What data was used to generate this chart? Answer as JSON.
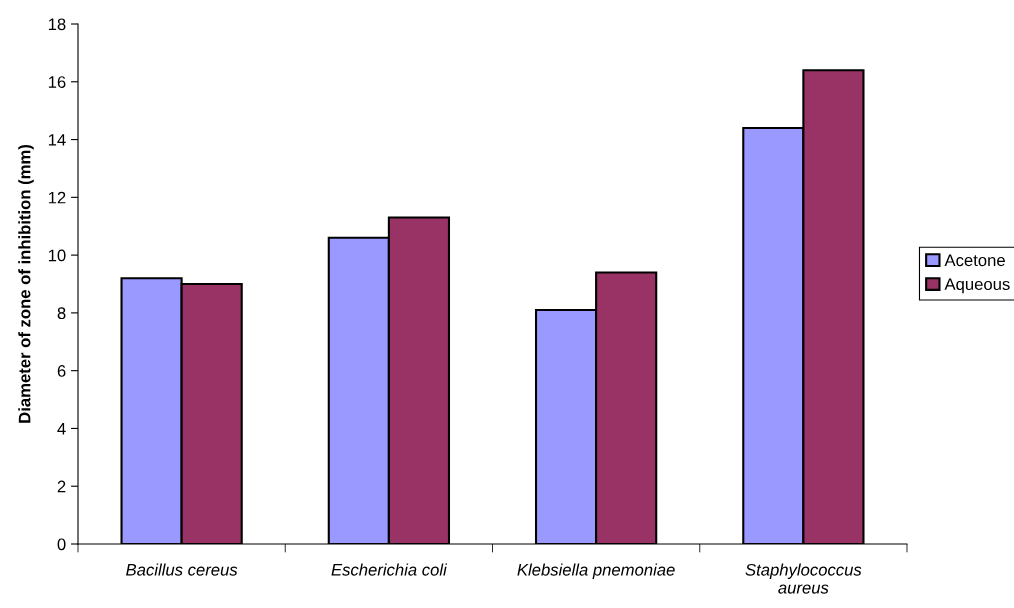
{
  "chart_data": {
    "type": "bar",
    "ylabel": "Diameter of zone of inhibition (mm)",
    "categories": [
      "Bacillus cereus",
      "Escherichia coli",
      "Klebsiella pnemoniae",
      "Staphylococcus\naureus"
    ],
    "series": [
      {
        "name": "Acetone",
        "color": "#9999ff",
        "values": [
          9.2,
          10.6,
          8.1,
          14.4
        ]
      },
      {
        "name": "Aqueous",
        "color": "#993366",
        "values": [
          9.0,
          11.3,
          9.4,
          16.4
        ]
      }
    ],
    "ylim": [
      0,
      18
    ],
    "yticks": [
      0,
      2,
      4,
      6,
      8,
      10,
      12,
      14,
      16,
      18
    ],
    "grid": false,
    "legend": "right"
  }
}
